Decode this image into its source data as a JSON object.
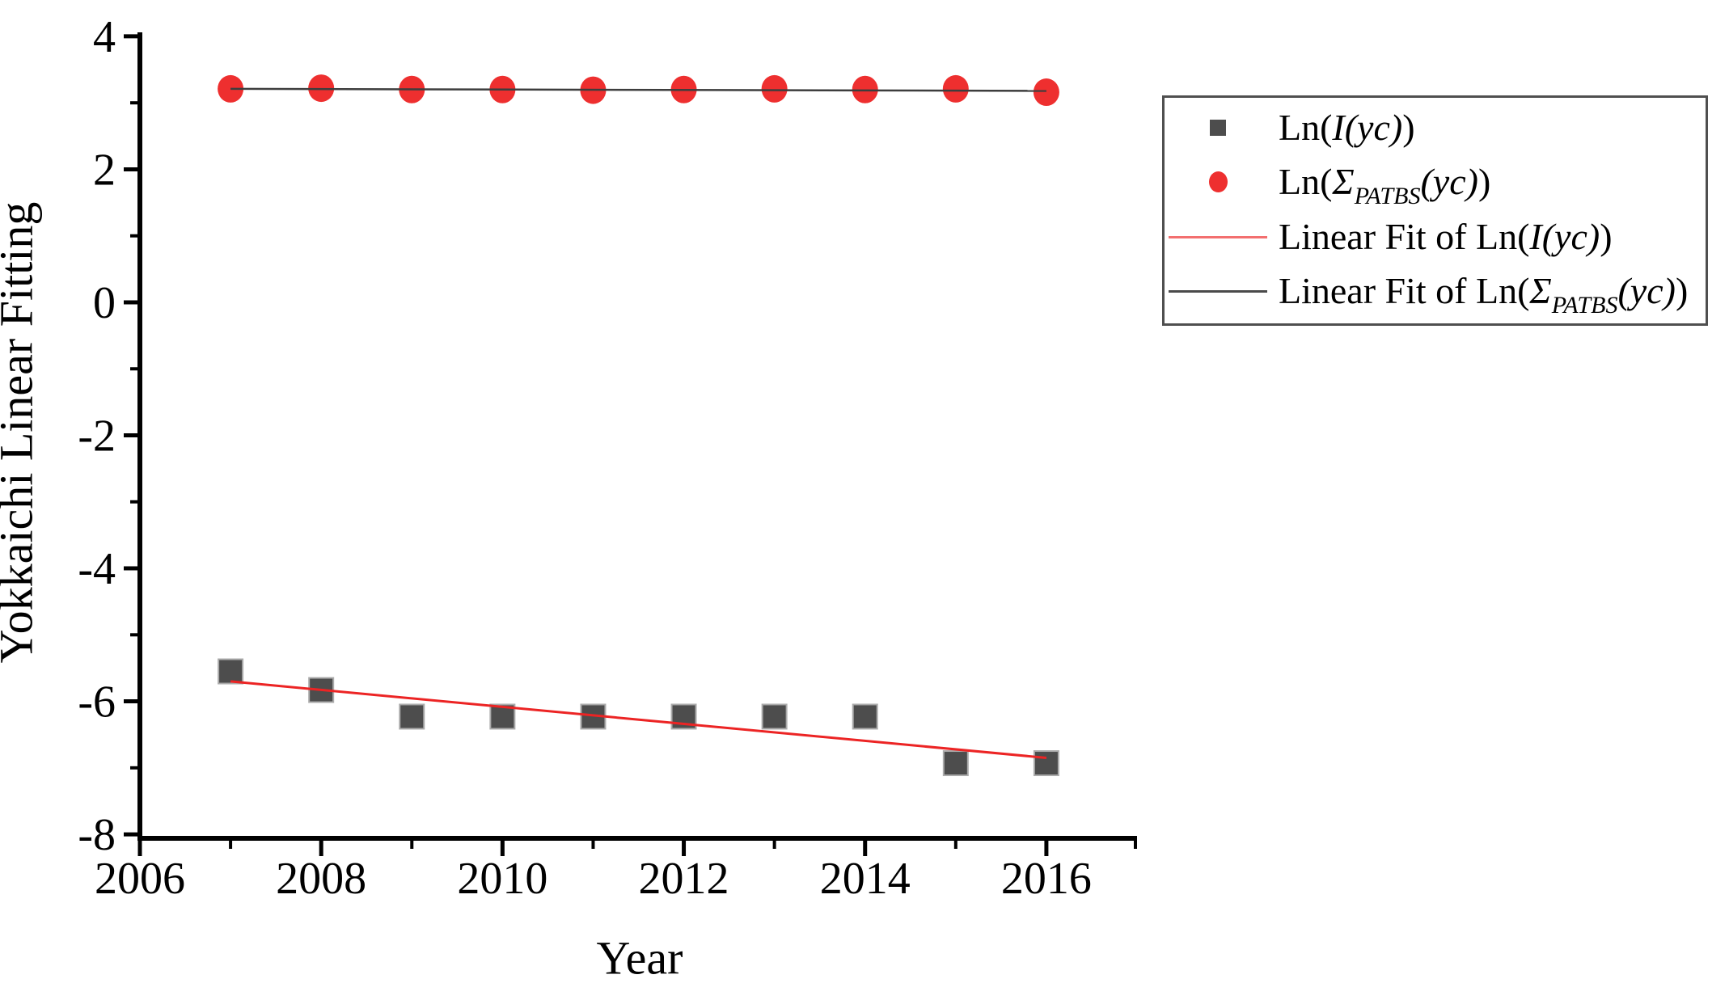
{
  "chart_data": {
    "type": "scatter",
    "title": "",
    "xlabel": "Year",
    "ylabel": "Yokkaichi Linear Fitting",
    "x": [
      2007,
      2008,
      2009,
      2010,
      2011,
      2012,
      2013,
      2014,
      2015,
      2016
    ],
    "series": [
      {
        "name": "Ln(I(yc))",
        "marker": "square",
        "color": "#4d4d4d",
        "edge_color": "#ababab",
        "values": [
          -5.55,
          -5.83,
          -6.23,
          -6.23,
          -6.23,
          -6.23,
          -6.23,
          -6.23,
          -6.93,
          -6.93
        ]
      },
      {
        "name": "Ln(Σ_PATBS(yc))",
        "marker": "circle",
        "color": "#ee2f2f",
        "values": [
          3.21,
          3.22,
          3.2,
          3.2,
          3.19,
          3.2,
          3.21,
          3.2,
          3.21,
          3.16
        ]
      }
    ],
    "fits": [
      {
        "name": "Linear Fit of Ln(I(yc))",
        "color": "#ec2424",
        "x": [
          2007,
          2016
        ],
        "y": [
          -5.7,
          -6.85
        ]
      },
      {
        "name": "Linear Fit of Ln(Σ_PATBS(yc))",
        "color": "#3d3d3d",
        "x": [
          2007,
          2016
        ],
        "y": [
          3.21,
          3.18
        ]
      }
    ],
    "xlim": [
      2006,
      2017
    ],
    "ylim": [
      -8.06,
      4.06
    ],
    "xticks": [
      2006,
      2008,
      2010,
      2012,
      2014,
      2016
    ],
    "xminor": [
      2007,
      2009,
      2011,
      2013,
      2015,
      2017
    ],
    "yticks": [
      4,
      2,
      0,
      -2,
      -4,
      -6,
      -8
    ],
    "yminor": [
      3,
      1,
      -1,
      -3,
      -5,
      -7
    ],
    "grid": false,
    "legend_position": "outside-right-top",
    "axis_color": "#000000"
  },
  "legend": {
    "items": [
      {
        "swatch": "square",
        "swatch_color": "#4d4d4d",
        "parts": [
          {
            "t": "Ln("
          },
          {
            "t": "I(yc)",
            "i": true
          },
          {
            "t": ")"
          }
        ]
      },
      {
        "swatch": "circle",
        "swatch_color": "#ee2f2f",
        "parts": [
          {
            "t": "Ln("
          },
          {
            "t": "Σ",
            "i": true
          },
          {
            "t": "PATBS",
            "sub": true
          },
          {
            "t": "(yc)",
            "i": true
          },
          {
            "t": ")"
          }
        ]
      },
      {
        "swatch": "line",
        "swatch_color": "#f36f6f",
        "parts": [
          {
            "t": "Linear Fit of Ln("
          },
          {
            "t": "I(yc)",
            "i": true
          },
          {
            "t": ")"
          }
        ]
      },
      {
        "swatch": "line",
        "swatch_color": "#4a4a4a",
        "parts": [
          {
            "t": "Linear Fit of Ln("
          },
          {
            "t": "Σ",
            "i": true
          },
          {
            "t": "PATBS",
            "sub": true
          },
          {
            "t": "(yc)",
            "i": true
          },
          {
            "t": ")"
          }
        ]
      }
    ]
  }
}
